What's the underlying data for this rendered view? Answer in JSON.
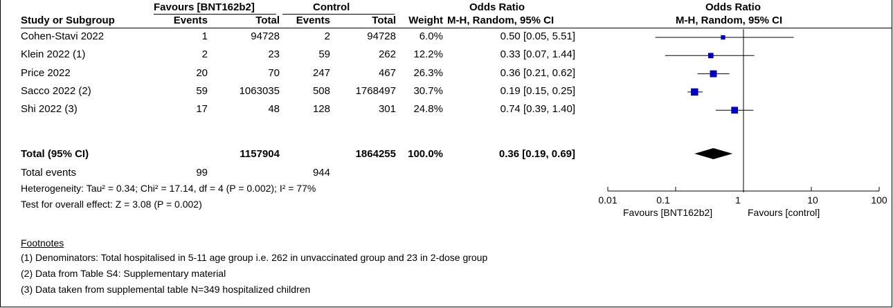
{
  "header": {
    "group1": "Favours [BNT162b2]",
    "group2": "Control",
    "or_table": "Odds Ratio",
    "or_plot": "Odds Ratio",
    "col_study": "Study or Subgroup",
    "col_events1": "Events",
    "col_total1": "Total",
    "col_events2": "Events",
    "col_total2": "Total",
    "col_weight": "Weight",
    "col_ci": "M-H, Random, 95% CI",
    "col_ci_plot": "M-H, Random, 95% CI"
  },
  "studies": [
    {
      "name": "Cohen-Stavi 2022",
      "e1": "1",
      "t1": "94728",
      "e2": "2",
      "t2": "94728",
      "weight": "6.0%",
      "ci": "0.50 [0.05, 5.51]"
    },
    {
      "name": "Klein 2022 (1)",
      "e1": "2",
      "t1": "23",
      "e2": "59",
      "t2": "262",
      "weight": "12.2%",
      "ci": "0.33 [0.07, 1.44]"
    },
    {
      "name": "Price 2022",
      "e1": "20",
      "t1": "70",
      "e2": "247",
      "t2": "467",
      "weight": "26.3%",
      "ci": "0.36 [0.21, 0.62]"
    },
    {
      "name": "Sacco 2022 (2)",
      "e1": "59",
      "t1": "1063035",
      "e2": "508",
      "t2": "1768497",
      "weight": "30.7%",
      "ci": "0.19 [0.15, 0.25]"
    },
    {
      "name": "Shi 2022 (3)",
      "e1": "17",
      "t1": "48",
      "e2": "128",
      "t2": "301",
      "weight": "24.8%",
      "ci": "0.74 [0.39, 1.40]"
    }
  ],
  "total": {
    "name": "Total (95% CI)",
    "t1": "1157904",
    "t2": "1864255",
    "weight": "100.0%",
    "ci": "0.36 [0.19, 0.69]"
  },
  "total_events": {
    "label": "Total events",
    "e1": "99",
    "e2": "944"
  },
  "heterogeneity": "Heterogeneity: Tau² = 0.34; Chi² = 17.14, df = 4 (P = 0.002); I² = 77%",
  "overall_effect": "Test for overall effect: Z = 3.08 (P = 0.002)",
  "footnotes": {
    "title": "Footnotes",
    "items": [
      "(1) Denominators: Total hospitalised in 5-11 age group i.e. 262 in unvaccinated group and 23 in 2-dose group",
      "(2) Data from Table S4: Supplementary material",
      "(3) Data taken from supplemental table N=349 hospitalized children"
    ]
  },
  "axis": {
    "ticks": [
      "0.01",
      "0.1",
      "1",
      "10",
      "100"
    ],
    "favours_left": "Favours [BNT162b2]",
    "favours_right": "Favours [control]"
  },
  "colors": {
    "marker": "#0000c0",
    "line": "#000000",
    "diamond": "#000000"
  },
  "chart_data": {
    "type": "scatter",
    "title": "Odds Ratio",
    "subtitle": "M-H, Random, 95% CI",
    "x_scale": "log",
    "xlim": [
      0.01,
      100
    ],
    "xticks": [
      0.01,
      0.1,
      1,
      10,
      100
    ],
    "reference_line": 1,
    "series": [
      {
        "name": "Cohen-Stavi 2022",
        "or": 0.5,
        "lo": 0.05,
        "hi": 5.51,
        "weight": 6.0
      },
      {
        "name": "Klein 2022 (1)",
        "or": 0.33,
        "lo": 0.07,
        "hi": 1.44,
        "weight": 12.2
      },
      {
        "name": "Price 2022",
        "or": 0.36,
        "lo": 0.21,
        "hi": 0.62,
        "weight": 26.3
      },
      {
        "name": "Sacco 2022 (2)",
        "or": 0.19,
        "lo": 0.15,
        "hi": 0.25,
        "weight": 30.7
      },
      {
        "name": "Shi 2022 (3)",
        "or": 0.74,
        "lo": 0.39,
        "hi": 1.4,
        "weight": 24.8
      }
    ],
    "pooled": {
      "name": "Total (95% CI)",
      "or": 0.36,
      "lo": 0.19,
      "hi": 0.69
    }
  }
}
